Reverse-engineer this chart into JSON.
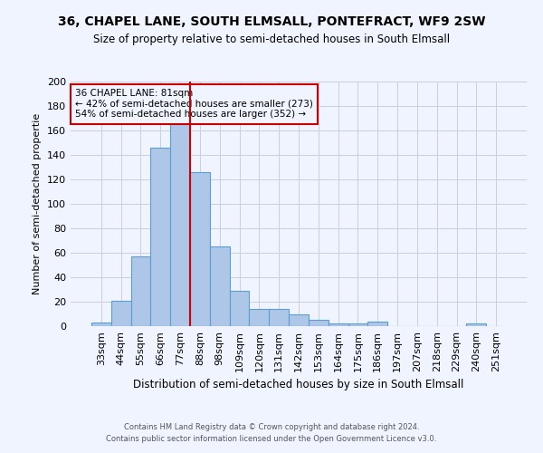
{
  "title1": "36, CHAPEL LANE, SOUTH ELMSALL, PONTEFRACT, WF9 2SW",
  "title2": "Size of property relative to semi-detached houses in South Elmsall",
  "xlabel": "Distribution of semi-detached houses by size in South Elmsall",
  "ylabel": "Number of semi-detached propertie",
  "footnote1": "Contains HM Land Registry data © Crown copyright and database right 2024.",
  "footnote2": "Contains public sector information licensed under the Open Government Licence v3.0.",
  "annotation_title": "36 CHAPEL LANE: 81sqm",
  "annotation_line1": "← 42% of semi-detached houses are smaller (273)",
  "annotation_line2": "54% of semi-detached houses are larger (352) →",
  "bar_labels": [
    "33sqm",
    "44sqm",
    "55sqm",
    "66sqm",
    "77sqm",
    "88sqm",
    "98sqm",
    "109sqm",
    "120sqm",
    "131sqm",
    "142sqm",
    "153sqm",
    "164sqm",
    "175sqm",
    "186sqm",
    "197sqm",
    "207sqm",
    "218sqm",
    "229sqm",
    "240sqm",
    "251sqm"
  ],
  "bar_heights": [
    3,
    21,
    57,
    146,
    168,
    126,
    65,
    29,
    14,
    14,
    10,
    5,
    2,
    2,
    4,
    0,
    0,
    0,
    0,
    2,
    0
  ],
  "bar_color": "#aec6e8",
  "bar_edge_color": "#5a9fd4",
  "red_line_color": "#cc0000",
  "ylim": [
    0,
    200
  ],
  "yticks": [
    0,
    20,
    40,
    60,
    80,
    100,
    120,
    140,
    160,
    180,
    200
  ],
  "bg_color": "#f0f4ff",
  "grid_color": "#c8d0e0",
  "title1_fontsize": 10,
  "title2_fontsize": 8.5
}
